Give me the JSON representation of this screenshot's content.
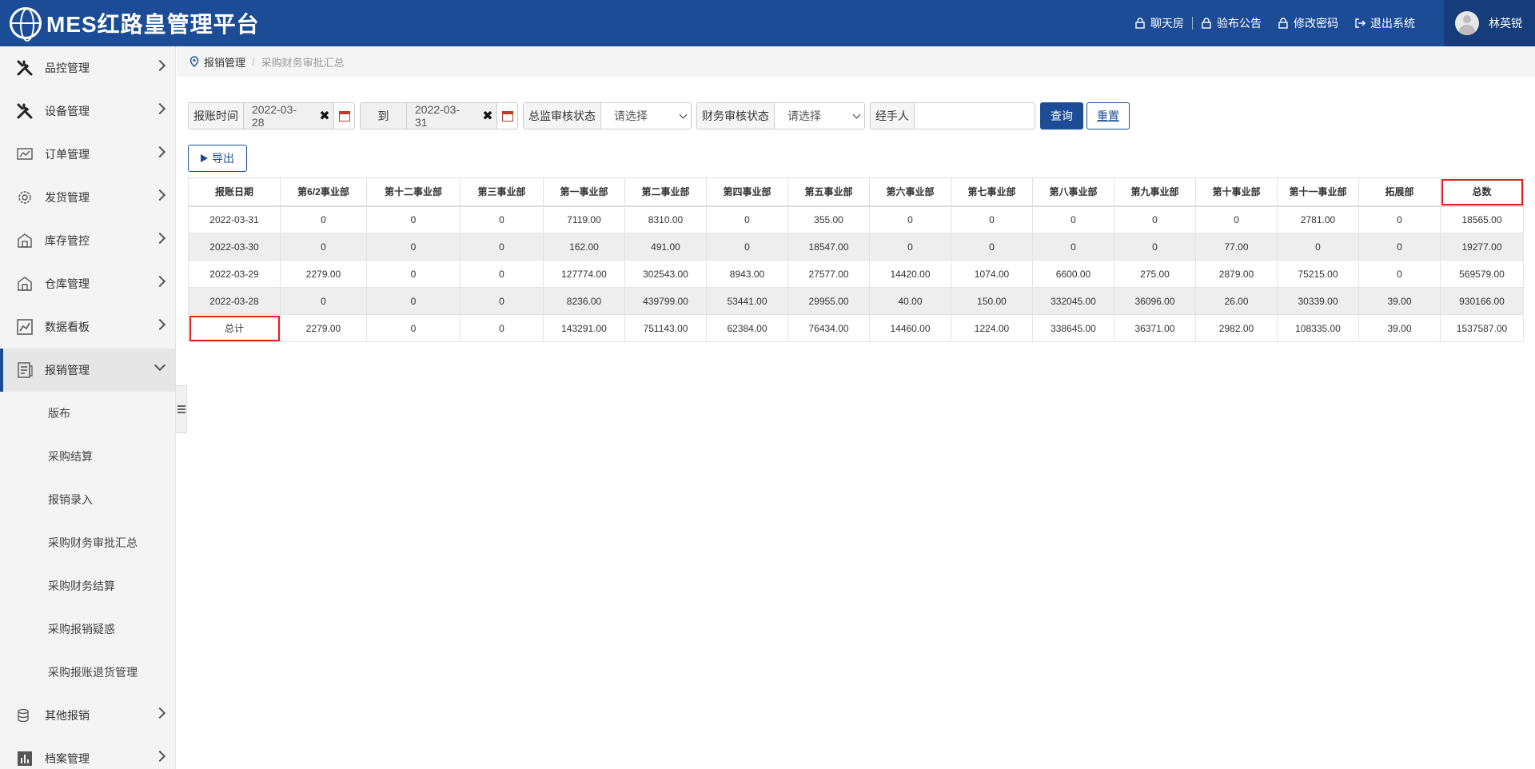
{
  "header": {
    "title": "MES红路皇管理平台",
    "links": [
      {
        "label": "聊天房",
        "icon": "lock-icon"
      },
      {
        "label": "验布公告",
        "icon": "lock-icon"
      },
      {
        "label": "修改密码",
        "icon": "lock-icon"
      },
      {
        "label": "退出系统",
        "icon": "logout-icon"
      }
    ],
    "user_name": "林英锐"
  },
  "sidebar": {
    "items": [
      {
        "label": "品控管理",
        "icon": "tools-icon"
      },
      {
        "label": "设备管理",
        "icon": "tools-icon"
      },
      {
        "label": "订单管理",
        "icon": "chart-icon"
      },
      {
        "label": "发货管理",
        "icon": "gear-icon"
      },
      {
        "label": "库存管控",
        "icon": "warehouse-icon"
      },
      {
        "label": "仓库管理",
        "icon": "warehouse-icon"
      },
      {
        "label": "数据看板",
        "icon": "dashboard-icon"
      },
      {
        "label": "报销管理",
        "icon": "document-icon"
      }
    ],
    "sub_items": [
      "版布",
      "采购结算",
      "报销录入",
      "采购财务审批汇总",
      "采购财务结算",
      "采购报销疑惑",
      "采购报账退货管理"
    ],
    "bottom_items": [
      {
        "label": "其他报销",
        "icon": "coins-icon"
      },
      {
        "label": "档案管理",
        "icon": "bar-chart-icon"
      }
    ]
  },
  "breadcrumb": {
    "parent": "报销管理",
    "current": "采购财务审批汇总"
  },
  "filters": {
    "date_label": "报账时间",
    "date_from": "2022-03-28",
    "to_label": "到",
    "date_to": "2022-03-31",
    "supervisor_label": "总监审核状态",
    "supervisor_value": "请选择",
    "finance_label": "财务审核状态",
    "finance_value": "请选择",
    "handler_label": "经手人",
    "handler_value": "",
    "query_label": "查询",
    "reset_label": "重置"
  },
  "export_label": "导出",
  "table": {
    "headers": [
      "报账日期",
      "第6/2事业部",
      "第十二事业部",
      "第三事业部",
      "第一事业部",
      "第二事业部",
      "第四事业部",
      "第五事业部",
      "第六事业部",
      "第七事业部",
      "第八事业部",
      "第九事业部",
      "第十事业部",
      "第十一事业部",
      "拓展部",
      "总数"
    ],
    "rows": [
      [
        "2022-03-31",
        "0",
        "0",
        "0",
        "7119.00",
        "8310.00",
        "0",
        "355.00",
        "0",
        "0",
        "0",
        "0",
        "0",
        "2781.00",
        "0",
        "18565.00"
      ],
      [
        "2022-03-30",
        "0",
        "0",
        "0",
        "162.00",
        "491.00",
        "0",
        "18547.00",
        "0",
        "0",
        "0",
        "0",
        "77.00",
        "0",
        "0",
        "19277.00"
      ],
      [
        "2022-03-29",
        "2279.00",
        "0",
        "0",
        "127774.00",
        "302543.00",
        "8943.00",
        "27577.00",
        "14420.00",
        "1074.00",
        "6600.00",
        "275.00",
        "2879.00",
        "75215.00",
        "0",
        "569579.00"
      ],
      [
        "2022-03-28",
        "0",
        "0",
        "0",
        "8236.00",
        "439799.00",
        "53441.00",
        "29955.00",
        "40.00",
        "150.00",
        "332045.00",
        "36096.00",
        "26.00",
        "30339.00",
        "39.00",
        "930166.00"
      ],
      [
        "总计",
        "2279.00",
        "0",
        "0",
        "143291.00",
        "751143.00",
        "62384.00",
        "76434.00",
        "14460.00",
        "1224.00",
        "338645.00",
        "36371.00",
        "2982.00",
        "108335.00",
        "39.00",
        "1537587.00"
      ]
    ]
  }
}
